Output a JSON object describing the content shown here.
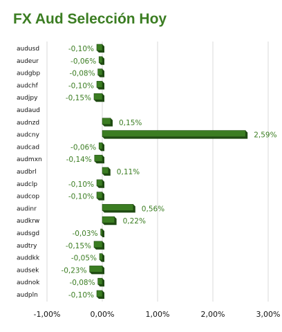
{
  "chart_data": {
    "type": "bar",
    "orientation": "horizontal",
    "title": "FX Aud Selección Hoy",
    "categories": [
      "audusd",
      "audeur",
      "audgbp",
      "audchf",
      "audjpy",
      "audaud",
      "audnzd",
      "audcny",
      "audcad",
      "audmxn",
      "audbrl",
      "audclp",
      "audcop",
      "audinr",
      "audkrw",
      "audsgd",
      "audtry",
      "auddkk",
      "audsek",
      "audnok",
      "audpln"
    ],
    "values": [
      -0.1,
      -0.06,
      -0.08,
      -0.1,
      -0.15,
      null,
      0.15,
      2.59,
      -0.06,
      -0.14,
      0.11,
      -0.1,
      -0.1,
      0.56,
      0.22,
      -0.03,
      -0.15,
      -0.05,
      -0.23,
      -0.08,
      -0.1
    ],
    "data_labels": [
      "-0,10%",
      "-0,06%",
      "-0,08%",
      "-0,10%",
      "-0,15%",
      "",
      "0,15%",
      "2,59%",
      "-0,06%",
      "-0,14%",
      "0,11%",
      "-0,10%",
      "-0,10%",
      "0,56%",
      "0,22%",
      "-0,03%",
      "-0,15%",
      "-0,05%",
      "-0,23%",
      "-0,08%",
      "-0,10%"
    ],
    "xticks": [
      -1,
      0,
      1,
      2,
      3
    ],
    "xtick_labels": [
      "-1,00%",
      "0,00%",
      "1,00%",
      "2,00%",
      "3,00%"
    ],
    "xlim": [
      -1,
      3
    ],
    "xlabel": "",
    "ylabel": "",
    "grid": "vertical",
    "legend": "none",
    "colors": {
      "bar": "#3b7d22",
      "bar_shade": "#1f4a12",
      "text": "#3b7d22",
      "grid": "#d9d9d9"
    }
  }
}
